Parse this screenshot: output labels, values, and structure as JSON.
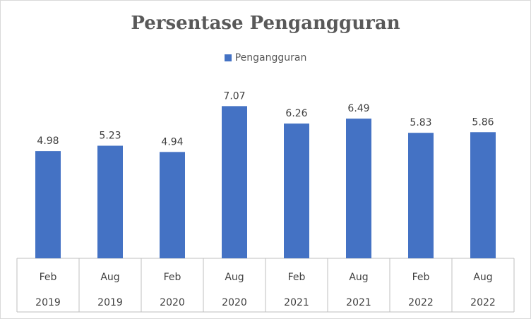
{
  "chart_data": {
    "type": "bar",
    "title": "Persentase Pengangguran",
    "categories": [
      [
        "Feb",
        "2019"
      ],
      [
        "Aug",
        "2019"
      ],
      [
        "Feb",
        "2020"
      ],
      [
        "Aug",
        "2020"
      ],
      [
        "Feb",
        "2021"
      ],
      [
        "Aug",
        "2021"
      ],
      [
        "Feb",
        "2022"
      ],
      [
        "Aug",
        "2022"
      ]
    ],
    "series": [
      {
        "name": "Pengangguran",
        "values": [
          4.98,
          5.23,
          4.94,
          7.07,
          6.26,
          6.49,
          5.83,
          5.86
        ],
        "labels": [
          "4.98",
          "5.23",
          "4.94",
          "7.07",
          "6.26",
          "6.49",
          "5.83",
          "5.86"
        ]
      }
    ],
    "ylim": [
      0,
      8
    ],
    "legend_position": "top",
    "grid": false,
    "colors": {
      "bar": "#4472c4",
      "axis": "#bfbfbf",
      "text": "#404040"
    }
  }
}
